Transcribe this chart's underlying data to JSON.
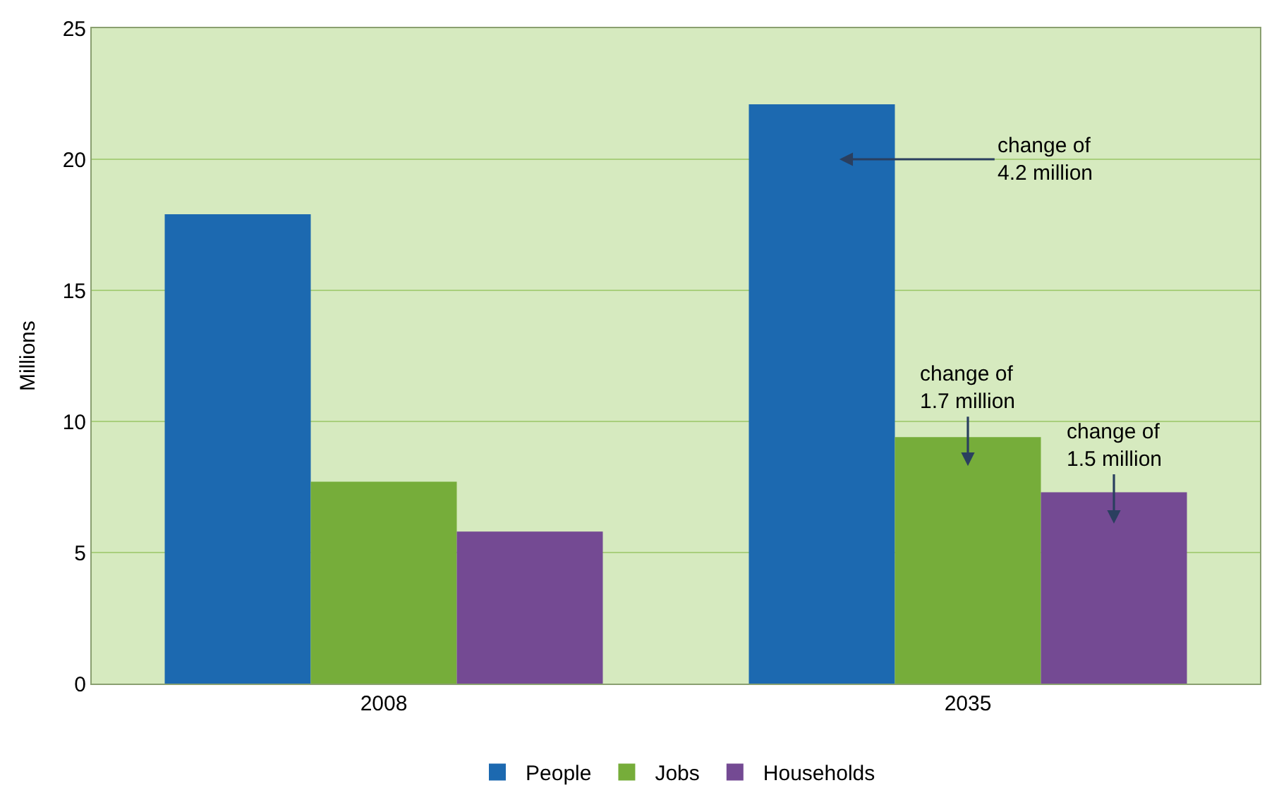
{
  "chart_data": {
    "type": "bar",
    "ylabel": "Millions",
    "categories": [
      "2008",
      "2035"
    ],
    "series": [
      {
        "name": "People",
        "color": "#1c69b0",
        "values": [
          17.9,
          22.1
        ]
      },
      {
        "name": "Jobs",
        "color": "#76ad3a",
        "values": [
          7.7,
          9.4
        ]
      },
      {
        "name": "Households",
        "color": "#744a93",
        "values": [
          5.8,
          7.3
        ]
      }
    ],
    "ylim": [
      0,
      25
    ],
    "yticks": [
      0,
      5,
      10,
      15,
      20,
      25
    ],
    "grid": "y",
    "legend": "bottom",
    "annotations": [
      "change of\n4.2 million",
      "change of\n1.7 million",
      "change of\n1.5 million"
    ]
  }
}
